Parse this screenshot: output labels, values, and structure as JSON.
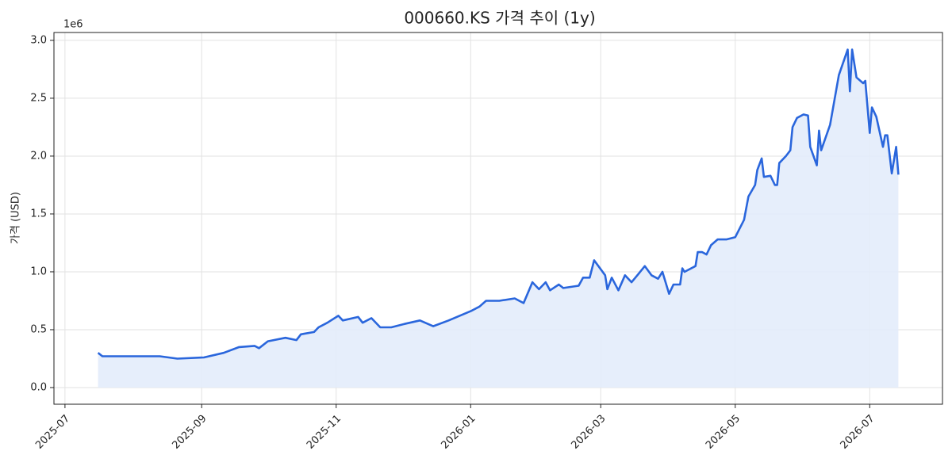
{
  "chart_data": {
    "type": "area-line",
    "title": "000660.KS 가격 추이 (1y)",
    "ylabel": "가격 (USD)",
    "y_offset_label": "1e6",
    "color": "#2a66dc",
    "fill_color": "#e3ecfb",
    "grid": true,
    "xlim": [
      "2025-06-26",
      "2026-08-03"
    ],
    "xticks": [
      "2025-07",
      "2025-09",
      "2025-11",
      "2026-01",
      "2026-03",
      "2026-05",
      "2026-07"
    ],
    "ylim": [
      -0.144,
      3.068
    ],
    "yticks": [
      {
        "value": 0,
        "label": "0.0"
      },
      0.5,
      {
        "value": 1,
        "label": "1.0"
      },
      1.5,
      {
        "value": 2,
        "label": "2.0"
      },
      2.5,
      {
        "value": 3,
        "label": "3.0"
      }
    ],
    "x": [
      "2025-07-16",
      "2025-07-18",
      "2025-07-31",
      "2025-08-13",
      "2025-08-21",
      "2025-09-02",
      "2025-09-11",
      "2025-09-18",
      "2025-09-25",
      "2025-09-27",
      "2025-10-01",
      "2025-10-09",
      "2025-10-14",
      "2025-10-16",
      "2025-10-22",
      "2025-10-24",
      "2025-10-28",
      "2025-11-02",
      "2025-11-04",
      "2025-11-11",
      "2025-11-13",
      "2025-11-17",
      "2025-11-21",
      "2025-11-26",
      "2025-12-02",
      "2025-12-09",
      "2025-12-15",
      "2025-12-22",
      "2026-01-01",
      "2026-01-05",
      "2026-01-08",
      "2026-01-14",
      "2026-01-21",
      "2026-01-25",
      "2026-01-29",
      "2026-02-01",
      "2026-02-04",
      "2026-02-06",
      "2026-02-10",
      "2026-02-12",
      "2026-02-19",
      "2026-02-21",
      "2026-02-24",
      "2026-02-26",
      "2026-03-03",
      "2026-03-04",
      "2026-03-06",
      "2026-03-09",
      "2026-03-12",
      "2026-03-15",
      "2026-03-18",
      "2026-03-21",
      "2026-03-24",
      "2026-03-27",
      "2026-03-29",
      "2026-04-01",
      "2026-04-03",
      "2026-04-06",
      "2026-04-07",
      "2026-04-08",
      "2026-04-13",
      "2026-04-14",
      "2026-04-16",
      "2026-04-18",
      "2026-04-20",
      "2026-04-23",
      "2026-04-27",
      "2026-05-01",
      "2026-05-05",
      "2026-05-07",
      "2026-05-10",
      "2026-05-11",
      "2026-05-13",
      "2026-05-14",
      "2026-05-17",
      "2026-05-19",
      "2026-05-20",
      "2026-05-21",
      "2026-05-24",
      "2026-05-26",
      "2026-05-27",
      "2026-05-29",
      "2026-06-01",
      "2026-06-03",
      "2026-06-04",
      "2026-06-07",
      "2026-06-08",
      "2026-06-09",
      "2026-06-13",
      "2026-06-17",
      "2026-06-21",
      "2026-06-22",
      "2026-06-23",
      "2026-06-25",
      "2026-06-28",
      "2026-06-29",
      "2026-07-01",
      "2026-07-02",
      "2026-07-04",
      "2026-07-07",
      "2026-07-08",
      "2026-07-09",
      "2026-07-11",
      "2026-07-13",
      "2026-07-14"
    ],
    "values": [
      0.3,
      0.27,
      0.27,
      0.27,
      0.25,
      0.26,
      0.3,
      0.35,
      0.36,
      0.34,
      0.4,
      0.43,
      0.41,
      0.46,
      0.48,
      0.52,
      0.56,
      0.62,
      0.58,
      0.61,
      0.56,
      0.6,
      0.52,
      0.52,
      0.55,
      0.58,
      0.53,
      0.58,
      0.66,
      0.7,
      0.75,
      0.75,
      0.77,
      0.73,
      0.91,
      0.85,
      0.91,
      0.84,
      0.89,
      0.86,
      0.88,
      0.95,
      0.95,
      1.1,
      0.97,
      0.85,
      0.95,
      0.84,
      0.97,
      0.91,
      0.98,
      1.05,
      0.97,
      0.94,
      1.0,
      0.81,
      0.89,
      0.89,
      1.03,
      1.0,
      1.05,
      1.17,
      1.17,
      1.15,
      1.23,
      1.28,
      1.28,
      1.3,
      1.45,
      1.65,
      1.75,
      1.88,
      1.98,
      1.82,
      1.83,
      1.75,
      1.75,
      1.94,
      2.0,
      2.05,
      2.25,
      2.33,
      2.36,
      2.35,
      2.08,
      1.92,
      2.22,
      2.05,
      2.27,
      2.7,
      2.92,
      2.56,
      2.92,
      2.68,
      2.63,
      2.65,
      2.2,
      2.42,
      2.34,
      2.08,
      2.18,
      2.18,
      1.85,
      2.08,
      1.84
    ]
  }
}
